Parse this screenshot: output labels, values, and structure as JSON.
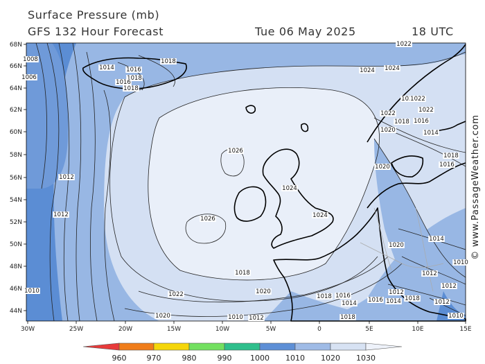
{
  "header": {
    "title": "Surface Pressure (mb)",
    "subtitle": "GFS 132 Hour Forecast",
    "datetime": "Tue 06 May 2025",
    "utc": "18 UTC"
  },
  "watermark": "© www.PassageWeather.com",
  "axes": {
    "lat_ticks": [
      "68N",
      "66N",
      "64N",
      "62N",
      "60N",
      "58N",
      "56N",
      "54N",
      "52N",
      "50N",
      "48N",
      "46N",
      "44N"
    ],
    "lon_ticks": [
      "30W",
      "25W",
      "20W",
      "15W",
      "10W",
      "5W",
      "0",
      "5E",
      "10E",
      "15E"
    ]
  },
  "isobar_labels": [
    "1022",
    "1024",
    "1026",
    "1026",
    "1024",
    "1024",
    "1024",
    "1022",
    "1022",
    "1020",
    "1018",
    "1016",
    "1014",
    "1012",
    "1012",
    "1010",
    "1008",
    "1006",
    "1014",
    "1016",
    "1018",
    "1018",
    "1016",
    "1018",
    "1024",
    "1022",
    "1022",
    "1020",
    "1018",
    "1016",
    "1014",
    "1020",
    "1018",
    "1016",
    "1014",
    "1012",
    "1010",
    "1018",
    "1016",
    "1014",
    "1012",
    "1010",
    "1012",
    "1012",
    "1018",
    "1018",
    "1020",
    "1020",
    "1010",
    "1012"
  ],
  "colorbar": {
    "ticks": [
      "960",
      "970",
      "980",
      "990",
      "1000",
      "1010",
      "1020",
      "1030"
    ],
    "colors": [
      "#e83a3a",
      "#f07d1a",
      "#f5d60a",
      "#73e060",
      "#2fbf8c",
      "#5d8fd6",
      "#9fbbe6",
      "#d7e2f3",
      "#eef2fa"
    ]
  },
  "fill_colors": {
    "outer": "#5b8dd4",
    "mid": "#98b7e4",
    "inner": "#d4e0f3",
    "core": "#e9eff9"
  }
}
